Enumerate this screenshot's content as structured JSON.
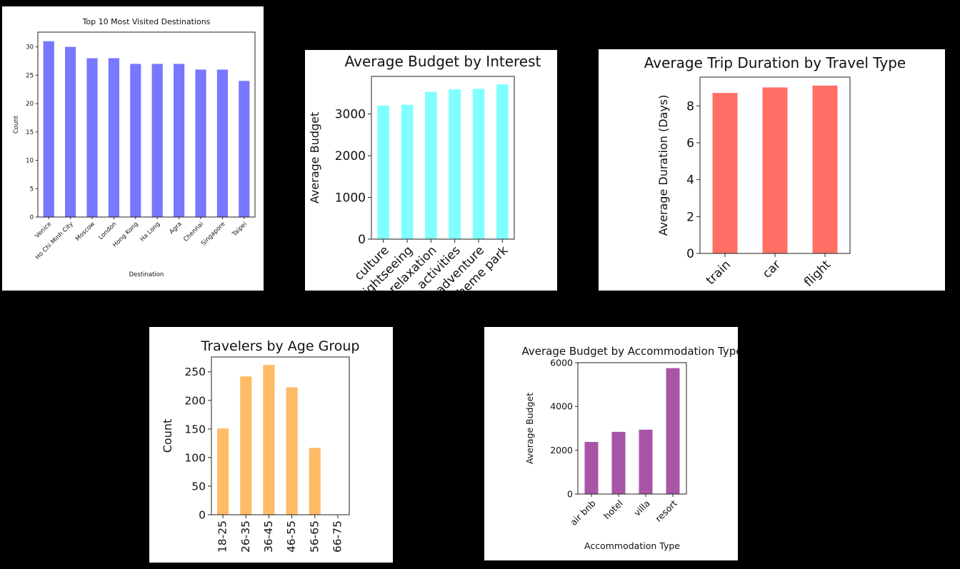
{
  "chart_data": [
    {
      "type": "bar",
      "title": "Top 10 Most Visited Destinations",
      "xlabel": "Destination",
      "ylabel": "Count",
      "categories": [
        "Venice",
        "Ho Chi Minh City",
        "Moscow",
        "London",
        "Hong Kong",
        "Ha Long",
        "Agra",
        "Chennai",
        "Singapore",
        "Taipei"
      ],
      "values": [
        31,
        30,
        28,
        28,
        27,
        27,
        27,
        26,
        26,
        24
      ],
      "ylim": [
        0,
        32.6
      ],
      "yticks": [
        0,
        5,
        10,
        15,
        20,
        25,
        30
      ],
      "color": "#7777ff",
      "grid": false,
      "legend": "none"
    },
    {
      "type": "bar",
      "title": "Average Budget by Interest",
      "xlabel": "",
      "ylabel": "Average Budget",
      "categories": [
        "culture",
        "sightseeing",
        "relaxation",
        "activities",
        "adventure",
        "theme park"
      ],
      "values": [
        3200,
        3220,
        3530,
        3590,
        3600,
        3710
      ],
      "ylim": [
        0,
        3900
      ],
      "yticks": [
        0,
        1000,
        2000,
        3000
      ],
      "color": "#80ffff",
      "grid": false,
      "legend": "none"
    },
    {
      "type": "bar",
      "title": "Average Trip Duration by Travel Type",
      "xlabel": "",
      "ylabel": "Average Duration (Days)",
      "categories": [
        "train",
        "car",
        "flight"
      ],
      "values": [
        8.7,
        9.0,
        9.1
      ],
      "ylim": [
        0,
        9.56
      ],
      "yticks": [
        0,
        2,
        4,
        6,
        8
      ],
      "color": "#ff6f66",
      "grid": false,
      "legend": "none"
    },
    {
      "type": "bar",
      "title": "Travelers by Age Group",
      "xlabel": "",
      "ylabel": "Count",
      "categories": [
        "18-25",
        "26-35",
        "36-45",
        "46-55",
        "56-65",
        "66-75"
      ],
      "values": [
        151,
        242,
        262,
        223,
        117,
        0
      ],
      "ylim": [
        0,
        276
      ],
      "yticks": [
        0,
        50,
        100,
        150,
        200,
        250
      ],
      "color": "#ffbb66",
      "grid": false,
      "legend": "none"
    },
    {
      "type": "bar",
      "title": "Average Budget by Accommodation Type",
      "xlabel": "Accommodation Type",
      "ylabel": "Average Budget",
      "categories": [
        "air bnb",
        "hotel",
        "villa",
        "resort"
      ],
      "values": [
        2380,
        2840,
        2940,
        5750
      ],
      "ylim": [
        0,
        6000
      ],
      "yticks": [
        0,
        2000,
        4000,
        6000
      ],
      "color": "#a855a8",
      "grid": false,
      "legend": "none"
    }
  ]
}
